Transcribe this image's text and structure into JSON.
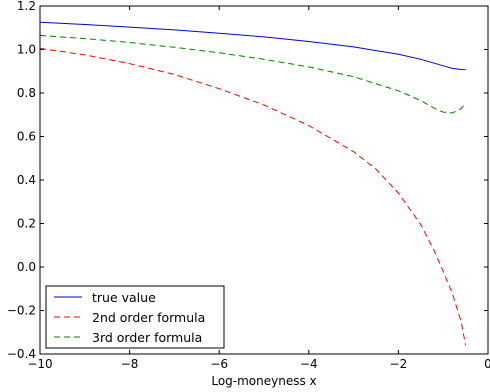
{
  "chart_data": {
    "type": "line",
    "title": "",
    "xlabel": "Log-moneyness x",
    "ylabel": "",
    "xlim": [
      -10,
      0
    ],
    "ylim": [
      -0.4,
      1.2
    ],
    "xticks": [
      -10,
      -8,
      -6,
      -4,
      -2,
      0
    ],
    "yticks": [
      -0.4,
      -0.2,
      0.0,
      0.2,
      0.4,
      0.6,
      0.8,
      1.0,
      1.2
    ],
    "xtick_labels": [
      "−10",
      "−8",
      "−6",
      "−4",
      "−2",
      "0"
    ],
    "ytick_labels": [
      "−0.4",
      "−0.2",
      "0.0",
      "0.2",
      "0.4",
      "0.6",
      "0.8",
      "1.0",
      "1.2"
    ],
    "grid": false,
    "legend_position": "lower-left",
    "series": [
      {
        "name": "true value",
        "color": "#0000ff",
        "style": "solid",
        "x": [
          -10,
          -9,
          -8,
          -7,
          -6,
          -5,
          -4,
          -3,
          -2,
          -1.5,
          -1.2,
          -1.0,
          -0.8,
          -0.6,
          -0.5
        ],
        "y": [
          1.125,
          1.115,
          1.103,
          1.09,
          1.075,
          1.058,
          1.037,
          1.012,
          0.978,
          0.955,
          0.937,
          0.925,
          0.913,
          0.908,
          0.907
        ]
      },
      {
        "name": "2nd order formula",
        "color": "#ff0000",
        "style": "dashed",
        "x": [
          -10,
          -9,
          -8,
          -7,
          -6,
          -5,
          -4,
          -3,
          -2.5,
          -2,
          -1.5,
          -1.2,
          -1.0,
          -0.8,
          -0.6,
          -0.5
        ],
        "y": [
          1.005,
          0.975,
          0.935,
          0.885,
          0.82,
          0.745,
          0.65,
          0.53,
          0.45,
          0.34,
          0.195,
          0.075,
          -0.02,
          -0.12,
          -0.25,
          -0.36
        ]
      },
      {
        "name": "3rd order formula",
        "color": "#008000",
        "style": "dashed",
        "x": [
          -10,
          -9,
          -8,
          -7,
          -6,
          -5,
          -4,
          -3,
          -2,
          -1.5,
          -1.2,
          -1.0,
          -0.8,
          -0.6,
          -0.5
        ],
        "y": [
          1.065,
          1.05,
          1.032,
          1.01,
          0.985,
          0.955,
          0.92,
          0.875,
          0.81,
          0.765,
          0.73,
          0.712,
          0.708,
          0.728,
          0.755
        ]
      }
    ]
  }
}
